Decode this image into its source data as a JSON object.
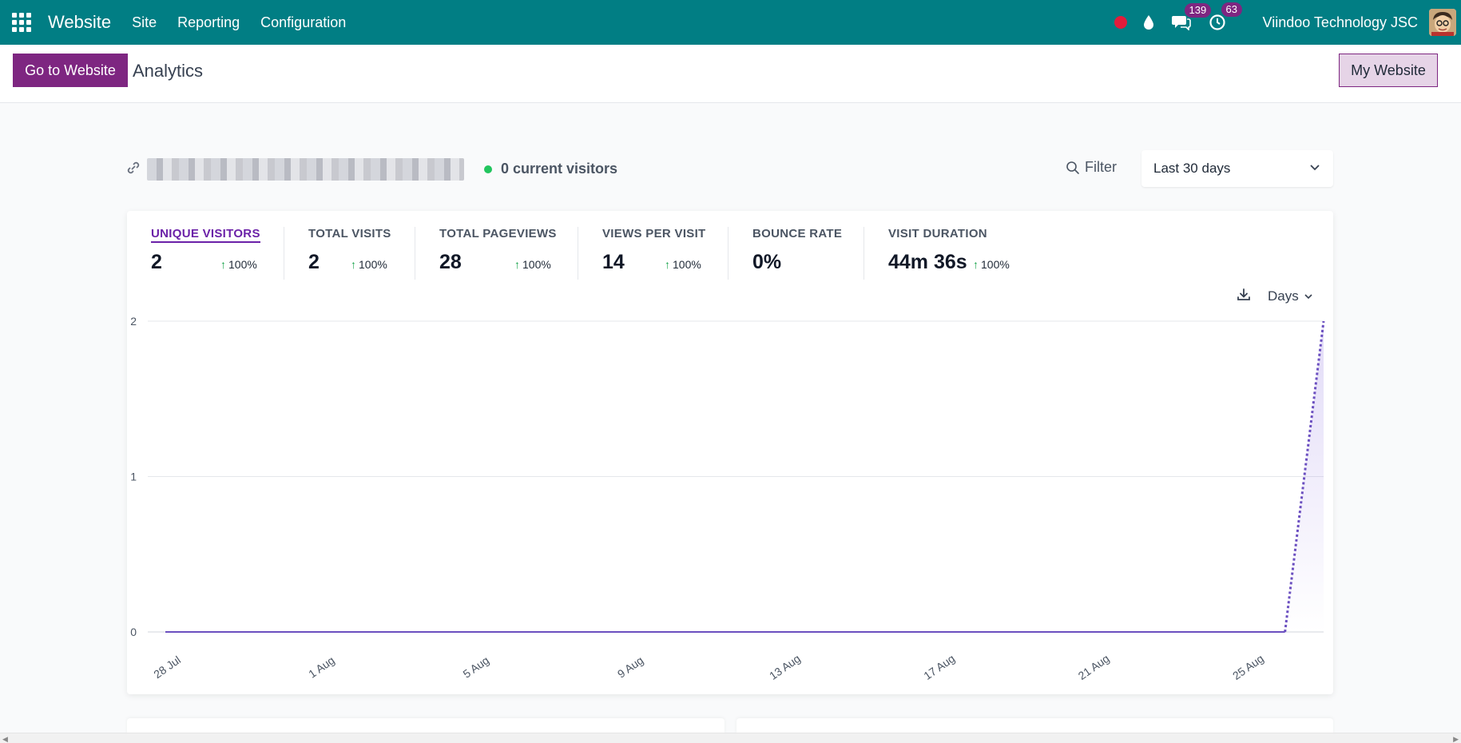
{
  "navbar": {
    "app_name": "Website",
    "menus": [
      "Site",
      "Reporting",
      "Configuration"
    ],
    "messages_count": "139",
    "activities_count": "63",
    "company": "Viindoo Technology JSC",
    "colors": {
      "bar": "#017e84",
      "badge": "#7e2681",
      "record": "#e21c3b"
    }
  },
  "control": {
    "go_to_website": "Go to Website",
    "title": "Analytics",
    "my_website": "My Website"
  },
  "site": {
    "current_visitors": "0 current visitors",
    "filter_label": "Filter",
    "range_label": "Last 30 days"
  },
  "kpis": [
    {
      "label": "UNIQUE VISITORS",
      "value": "2",
      "delta": "100%",
      "active": true
    },
    {
      "label": "TOTAL VISITS",
      "value": "2",
      "delta": "100%"
    },
    {
      "label": "TOTAL PAGEVIEWS",
      "value": "28",
      "delta": "100%"
    },
    {
      "label": "VIEWS PER VISIT",
      "value": "14",
      "delta": "100%"
    },
    {
      "label": "BOUNCE RATE",
      "value": "0%",
      "delta": null
    },
    {
      "label": "VISIT DURATION",
      "value": "44m 36s",
      "delta": "100%"
    }
  ],
  "interval": {
    "label": "Days"
  },
  "chart_data": {
    "type": "line",
    "title": "",
    "xlabel": "",
    "ylabel": "",
    "series": [
      {
        "name": "Unique visitors",
        "values": [
          0,
          0,
          0,
          0,
          0,
          0,
          0,
          0,
          0,
          0,
          0,
          0,
          0,
          0,
          0,
          0,
          0,
          0,
          0,
          0,
          0,
          0,
          0,
          0,
          0,
          0,
          0,
          0,
          0,
          0,
          2
        ]
      }
    ],
    "x_start": "28 Jul",
    "x_end": "27 Aug",
    "x_tick_labels": [
      "28 Jul",
      "1 Aug",
      "5 Aug",
      "9 Aug",
      "13 Aug",
      "17 Aug",
      "21 Aug",
      "25 Aug"
    ],
    "y_ticks": [
      0,
      1,
      2
    ],
    "ylim": [
      0,
      2
    ],
    "incomplete_last_segment": true,
    "grid": true,
    "line_color": "#6b4fc0"
  }
}
